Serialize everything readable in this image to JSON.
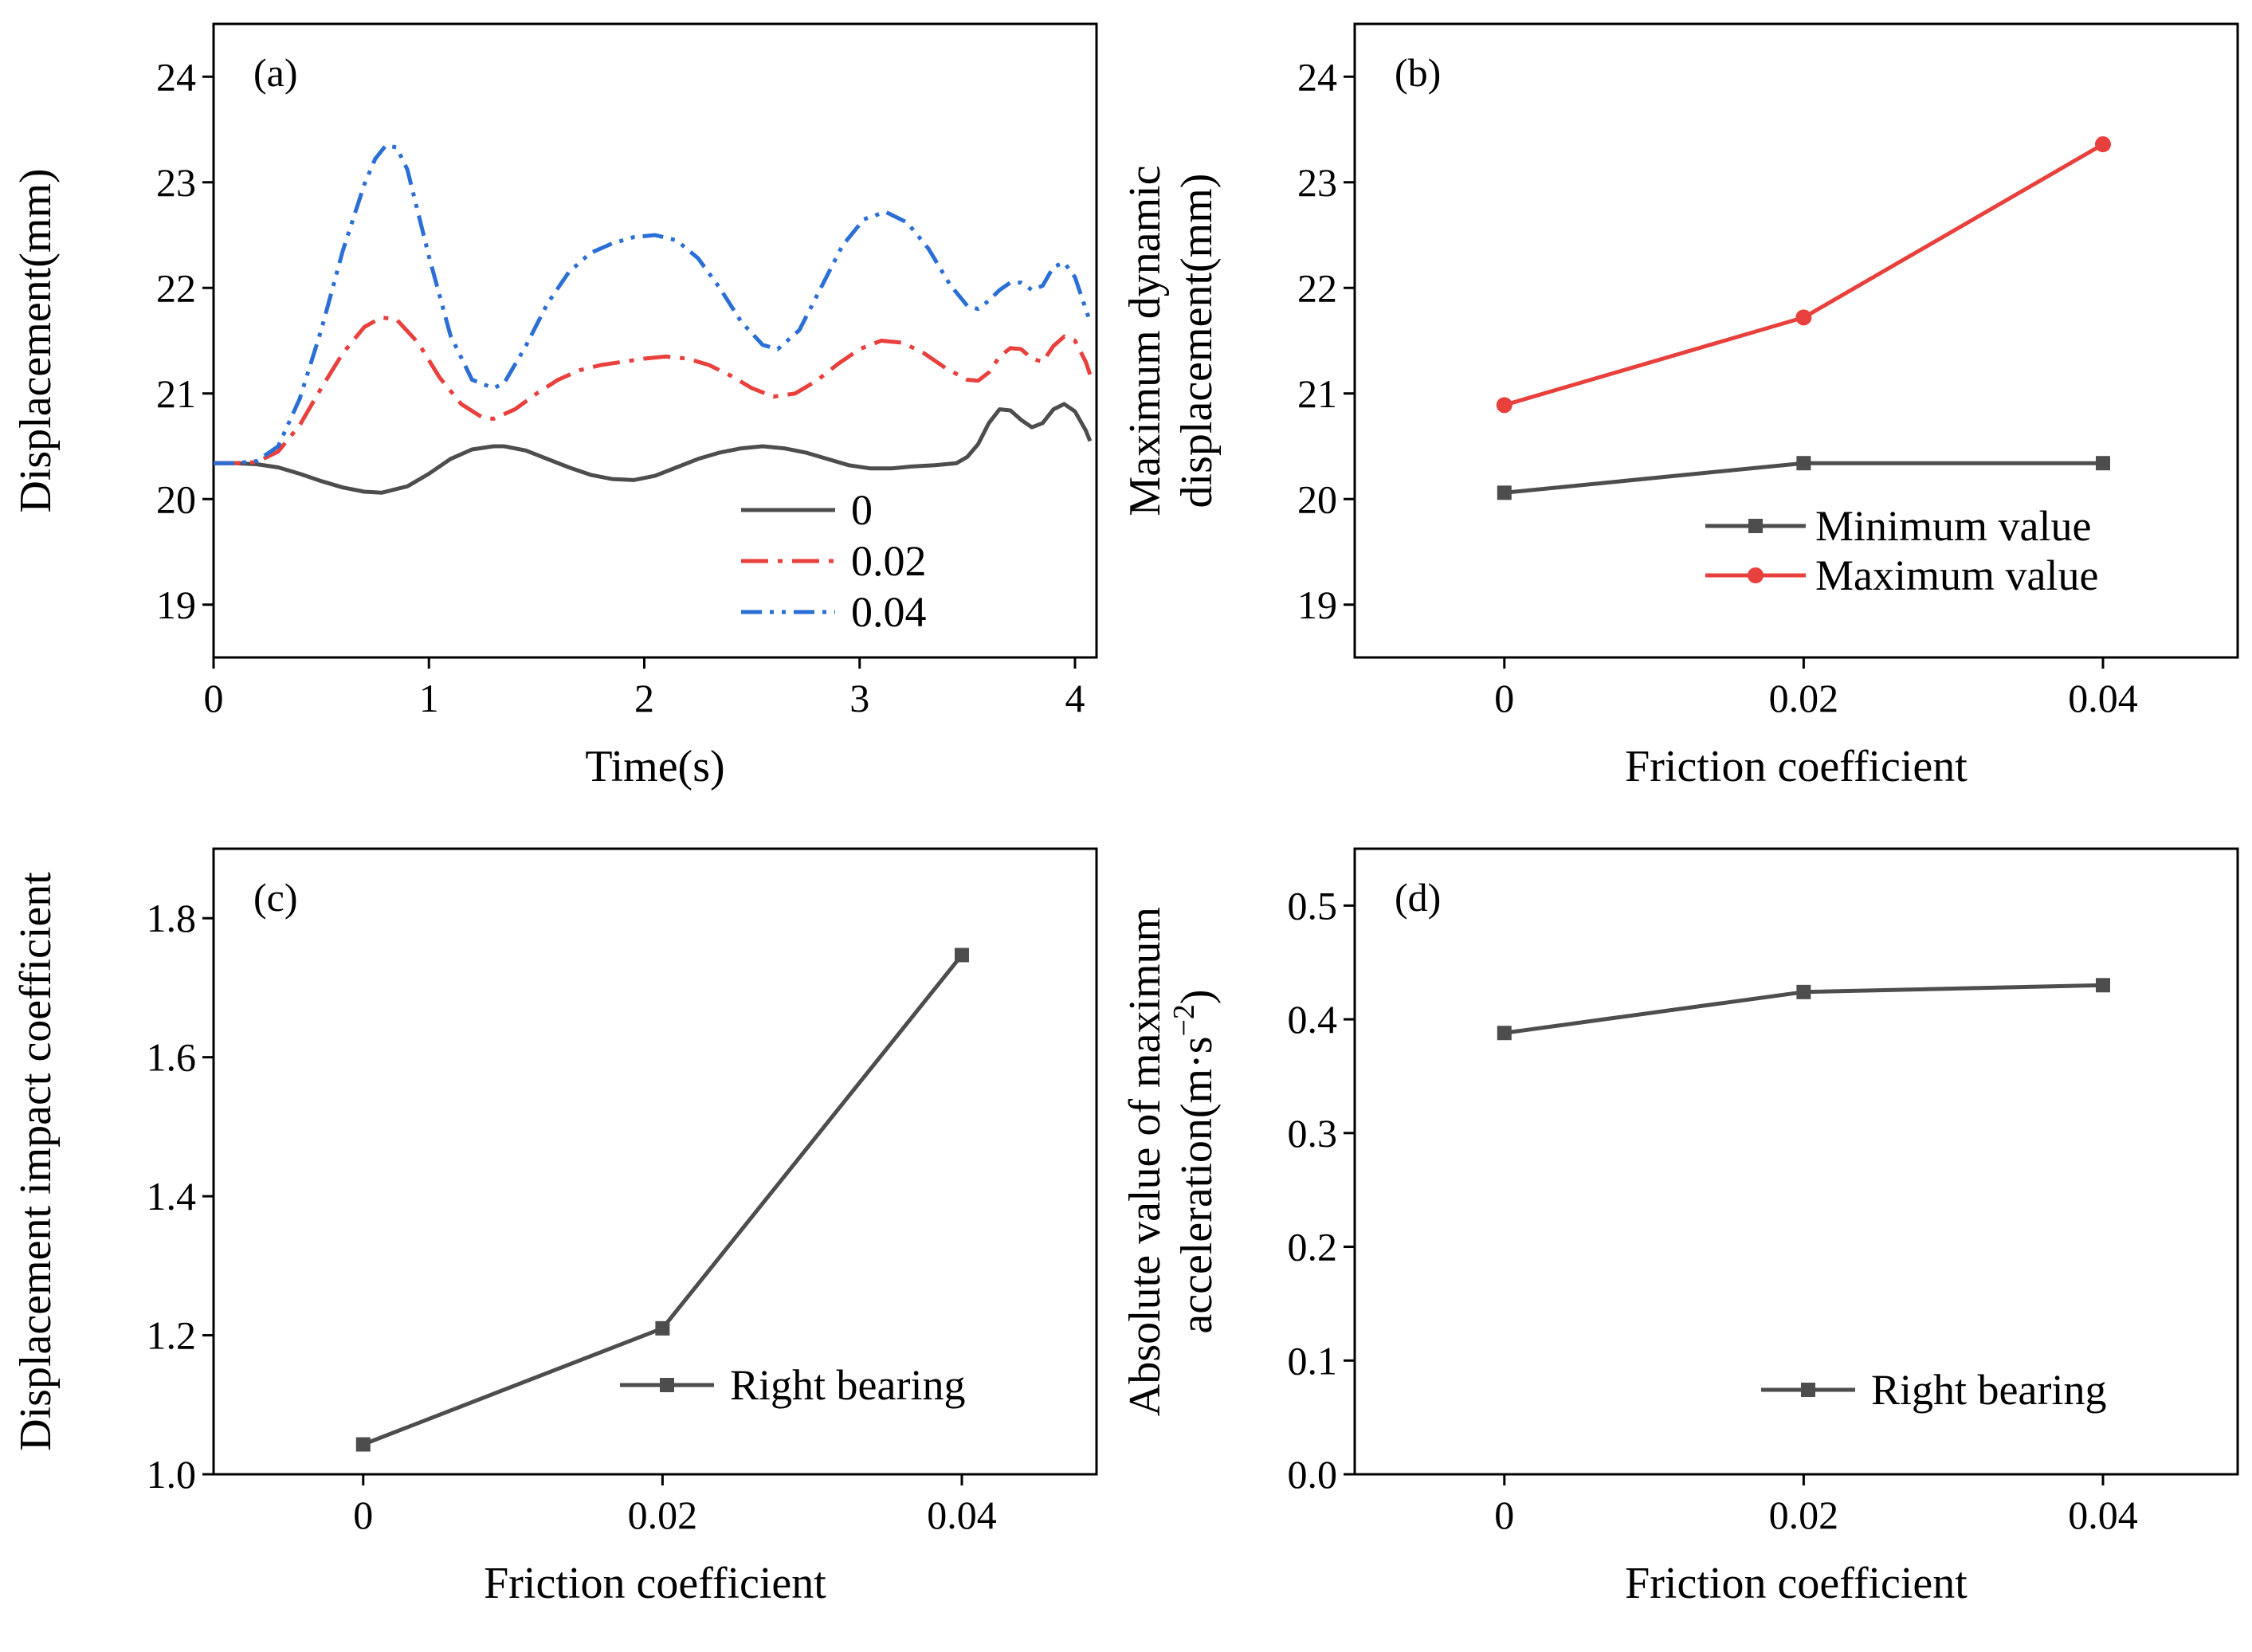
{
  "colors": {
    "series_0": "#4d4d4d",
    "series_002": "#e8403c",
    "series_004": "#2b6fd6",
    "minimum": "#4d4d4d",
    "maximum": "#e8403c",
    "right_bearing": "#4d4d4d"
  },
  "chart_data": [
    {
      "id": "a",
      "type": "line",
      "panel_label": "(a)",
      "xlabel": "Time(s)",
      "ylabel": "Displacement(mm)",
      "xlim": [
        0,
        4.1
      ],
      "ylim": [
        18.5,
        24.5
      ],
      "xticks": [
        0,
        1,
        2,
        3,
        4
      ],
      "xtick_labels": [
        "0",
        "1",
        "2",
        "3",
        "4"
      ],
      "yticks": [
        19,
        20,
        21,
        22,
        23,
        24
      ],
      "ytick_labels": [
        "19",
        "20",
        "21",
        "22",
        "23",
        "24"
      ],
      "legend_position": "lower-right",
      "series": [
        {
          "name": "0",
          "style": "solid",
          "color": "#4d4d4d",
          "x": [
            0,
            0.1,
            0.2,
            0.3,
            0.4,
            0.5,
            0.6,
            0.7,
            0.78,
            0.9,
            1.0,
            1.1,
            1.2,
            1.3,
            1.35,
            1.45,
            1.55,
            1.65,
            1.75,
            1.85,
            1.95,
            2.05,
            2.15,
            2.25,
            2.35,
            2.45,
            2.55,
            2.65,
            2.75,
            2.85,
            2.95,
            3.05,
            3.15,
            3.25,
            3.35,
            3.45,
            3.5,
            3.55,
            3.6,
            3.65,
            3.7,
            3.75,
            3.8,
            3.85,
            3.9,
            3.95,
            4.0,
            4.05,
            4.07
          ],
          "y": [
            20.34,
            20.34,
            20.33,
            20.3,
            20.24,
            20.17,
            20.11,
            20.07,
            20.06,
            20.12,
            20.24,
            20.38,
            20.47,
            20.5,
            20.5,
            20.46,
            20.38,
            20.3,
            20.23,
            20.19,
            20.18,
            20.22,
            20.3,
            20.38,
            20.44,
            20.48,
            20.5,
            20.48,
            20.44,
            20.38,
            20.32,
            20.29,
            20.29,
            20.31,
            20.32,
            20.34,
            20.4,
            20.52,
            20.72,
            20.85,
            20.84,
            20.75,
            20.68,
            20.72,
            20.85,
            20.9,
            20.83,
            20.65,
            20.55
          ]
        },
        {
          "name": "0.02",
          "style": "dashdot",
          "color": "#e8403c",
          "x": [
            0,
            0.1,
            0.2,
            0.3,
            0.4,
            0.5,
            0.6,
            0.7,
            0.78,
            0.85,
            0.95,
            1.05,
            1.15,
            1.25,
            1.3,
            1.4,
            1.5,
            1.6,
            1.7,
            1.8,
            1.9,
            2.0,
            2.1,
            2.2,
            2.3,
            2.4,
            2.5,
            2.6,
            2.7,
            2.8,
            2.9,
            3.0,
            3.1,
            3.2,
            3.3,
            3.4,
            3.5,
            3.55,
            3.6,
            3.65,
            3.7,
            3.75,
            3.8,
            3.85,
            3.9,
            3.95,
            4.0,
            4.05,
            4.07
          ],
          "y": [
            20.34,
            20.34,
            20.35,
            20.45,
            20.7,
            21.05,
            21.38,
            21.63,
            21.72,
            21.7,
            21.48,
            21.15,
            20.9,
            20.77,
            20.76,
            20.85,
            21.0,
            21.13,
            21.22,
            21.27,
            21.3,
            21.33,
            21.35,
            21.33,
            21.27,
            21.17,
            21.05,
            20.97,
            21.0,
            21.12,
            21.28,
            21.42,
            21.5,
            21.48,
            21.38,
            21.24,
            21.13,
            21.12,
            21.2,
            21.35,
            21.43,
            21.42,
            21.33,
            21.3,
            21.45,
            21.54,
            21.5,
            21.3,
            21.18
          ]
        },
        {
          "name": "0.04",
          "style": "dashdotdot",
          "color": "#2b6fd6",
          "x": [
            0,
            0.1,
            0.2,
            0.3,
            0.4,
            0.5,
            0.6,
            0.7,
            0.75,
            0.8,
            0.85,
            0.9,
            1.0,
            1.1,
            1.2,
            1.3,
            1.35,
            1.45,
            1.55,
            1.65,
            1.75,
            1.85,
            1.95,
            2.05,
            2.15,
            2.25,
            2.35,
            2.45,
            2.55,
            2.62,
            2.72,
            2.82,
            2.92,
            3.02,
            3.12,
            3.22,
            3.32,
            3.42,
            3.5,
            3.55,
            3.6,
            3.65,
            3.7,
            3.75,
            3.8,
            3.85,
            3.9,
            3.95,
            4.0,
            4.05,
            4.07
          ],
          "y": [
            20.34,
            20.34,
            20.36,
            20.5,
            20.95,
            21.6,
            22.35,
            22.98,
            23.22,
            23.35,
            23.33,
            23.12,
            22.3,
            21.55,
            21.13,
            21.05,
            21.1,
            21.45,
            21.85,
            22.15,
            22.33,
            22.42,
            22.48,
            22.5,
            22.45,
            22.28,
            22.0,
            21.68,
            21.46,
            21.42,
            21.6,
            22.0,
            22.4,
            22.65,
            22.72,
            22.62,
            22.37,
            22.03,
            21.83,
            21.8,
            21.88,
            21.98,
            22.05,
            22.05,
            21.98,
            22.02,
            22.2,
            22.24,
            22.1,
            21.8,
            21.68
          ]
        }
      ]
    },
    {
      "id": "b",
      "type": "line",
      "panel_label": "(b)",
      "xlabel": "Friction coefficient",
      "ylabel_lines": [
        "Maximum dynamic",
        "displacement(mm)"
      ],
      "xlim": [
        -0.01,
        0.049
      ],
      "ylim": [
        18.5,
        24.5
      ],
      "xticks": [
        0,
        0.02,
        0.04
      ],
      "xtick_labels": [
        "0",
        "0.02",
        "0.04"
      ],
      "yticks": [
        19,
        20,
        21,
        22,
        23,
        24
      ],
      "ytick_labels": [
        "19",
        "20",
        "21",
        "22",
        "23",
        "24"
      ],
      "legend_position": "lower-right",
      "series": [
        {
          "name": "Minimum value",
          "marker": "square",
          "color": "#4d4d4d",
          "x": [
            0,
            0.02,
            0.04
          ],
          "y": [
            20.06,
            20.34,
            20.34
          ]
        },
        {
          "name": "Maximum value",
          "marker": "circle",
          "color": "#e8403c",
          "x": [
            0,
            0.02,
            0.04
          ],
          "y": [
            20.89,
            21.72,
            23.36
          ]
        }
      ]
    },
    {
      "id": "c",
      "type": "line",
      "panel_label": "(c)",
      "xlabel": "Friction coefficient",
      "ylabel": "Displacement impact coefficient",
      "xlim": [
        -0.01,
        0.049
      ],
      "ylim": [
        1.0,
        1.9
      ],
      "xticks": [
        0,
        0.02,
        0.04
      ],
      "xtick_labels": [
        "0",
        "0.02",
        "0.04"
      ],
      "yticks": [
        1.0,
        1.2,
        1.4,
        1.6,
        1.8
      ],
      "ytick_labels": [
        "1.0",
        "1.2",
        "1.4",
        "1.6",
        "1.8"
      ],
      "legend_position": "lower-right",
      "series": [
        {
          "name": "Right bearing",
          "marker": "square",
          "color": "#4d4d4d",
          "x": [
            0,
            0.02,
            0.04
          ],
          "y": [
            1.043,
            1.21,
            1.747
          ]
        }
      ]
    },
    {
      "id": "d",
      "type": "line",
      "panel_label": "(d)",
      "xlabel": "Friction coefficient",
      "ylabel_lines": [
        "Absolute value of maximum",
        "acceleration(m·s"
      ],
      "ylabel_sup": "−2",
      "ylabel_close": ")",
      "xlim": [
        -0.01,
        0.049
      ],
      "ylim": [
        0.0,
        0.55
      ],
      "xticks": [
        0,
        0.02,
        0.04
      ],
      "xtick_labels": [
        "0",
        "0.02",
        "0.04"
      ],
      "yticks": [
        0.0,
        0.1,
        0.2,
        0.3,
        0.4,
        0.5
      ],
      "ytick_labels": [
        "0.0",
        "0.1",
        "0.2",
        "0.3",
        "0.4",
        "0.5"
      ],
      "legend_position": "lower-right",
      "series": [
        {
          "name": "Right bearing",
          "marker": "square",
          "color": "#4d4d4d",
          "x": [
            0,
            0.02,
            0.04
          ],
          "y": [
            0.388,
            0.424,
            0.43
          ]
        }
      ]
    }
  ]
}
